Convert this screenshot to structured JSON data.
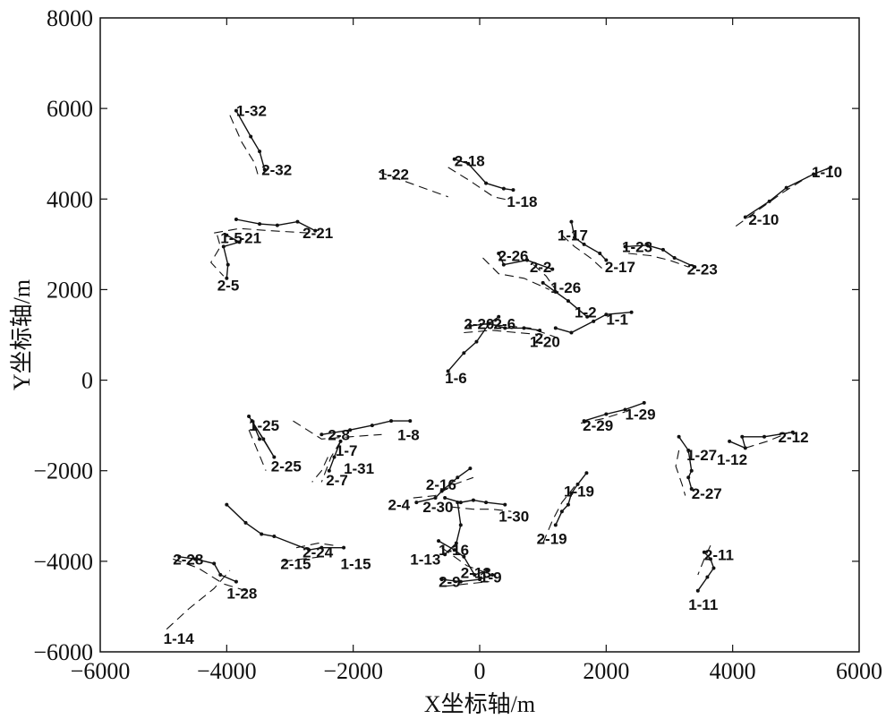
{
  "chart_data": {
    "type": "line",
    "xlabel": "X坐标轴/m",
    "ylabel": "Y坐标轴/m",
    "xlim": [
      -6000,
      6000
    ],
    "ylim": [
      -6000,
      8000
    ],
    "xticks": [
      "−6000",
      "−4000",
      "−2000",
      "0",
      "2000",
      "4000",
      "6000"
    ],
    "yticks": [
      "−6000",
      "−4000",
      "−2000",
      "0",
      "2000",
      "4000",
      "6000",
      "8000"
    ],
    "grid": false,
    "series": [
      {
        "name": "1-32",
        "style": "solid",
        "x": [
          -3850,
          -3620,
          -3480,
          -3400
        ],
        "y": [
          5950,
          5380,
          5050,
          4650
        ]
      },
      {
        "name": "2-32",
        "style": "dashed",
        "x": [
          -3950,
          -3760,
          -3560,
          -3510
        ],
        "y": [
          5850,
          5250,
          4800,
          4550
        ]
      },
      {
        "name": "1-22",
        "style": "dashed",
        "x": [
          -1600,
          -500
        ],
        "y": [
          4600,
          4050
        ]
      },
      {
        "name": "1-18",
        "style": "solid",
        "x": [
          -400,
          -180,
          100,
          380,
          530
        ],
        "y": [
          4880,
          4780,
          4350,
          4230,
          4200
        ]
      },
      {
        "name": "2-18",
        "style": "dashed",
        "x": [
          -500,
          -150,
          220,
          450
        ],
        "y": [
          4700,
          4400,
          4050,
          3980
        ]
      },
      {
        "name": "1-10",
        "style": "solid",
        "x": [
          4200,
          4580,
          4850,
          5280,
          5550
        ],
        "y": [
          3600,
          3950,
          4250,
          4550,
          4700
        ]
      },
      {
        "name": "2-10",
        "style": "dashed",
        "x": [
          4050,
          4400,
          4800,
          5200
        ],
        "y": [
          3400,
          3750,
          4150,
          4500
        ]
      },
      {
        "name": "2-21",
        "style": "solid",
        "x": [
          -3850,
          -3480,
          -3200,
          -2880,
          -2600
        ],
        "y": [
          3550,
          3450,
          3420,
          3500,
          3300
        ]
      },
      {
        "name": "1-21",
        "style": "dashed",
        "x": [
          -4200,
          -3800,
          -3300,
          -2700
        ],
        "y": [
          3250,
          3350,
          3300,
          3250
        ]
      },
      {
        "name": "1-5",
        "style": "solid",
        "x": [
          -4000,
          -3800,
          -4050,
          -3980,
          -4000
        ],
        "y": [
          3200,
          3050,
          2950,
          2550,
          2250
        ]
      },
      {
        "name": "2-5",
        "style": "dashed",
        "x": [
          -4150,
          -4100,
          -4250,
          -4050
        ],
        "y": [
          3200,
          2950,
          2600,
          2300
        ]
      },
      {
        "name": "1-17",
        "style": "solid",
        "x": [
          1450,
          1500,
          1650,
          1900,
          2000
        ],
        "y": [
          3500,
          3150,
          3000,
          2800,
          2650
        ]
      },
      {
        "name": "2-17",
        "style": "dashed",
        "x": [
          1300,
          1500,
          1750,
          1950
        ],
        "y": [
          3200,
          2950,
          2700,
          2450
        ]
      },
      {
        "name": "1-23",
        "style": "solid",
        "x": [
          2300,
          2650,
          2900,
          3080,
          3400
        ],
        "y": [
          2950,
          2980,
          2880,
          2700,
          2500
        ]
      },
      {
        "name": "2-23",
        "style": "dashed",
        "x": [
          2350,
          2700,
          3000,
          3300
        ],
        "y": [
          2800,
          2750,
          2650,
          2500
        ]
      },
      {
        "name": "2-26",
        "style": "solid",
        "x": [
          300,
          380,
          750,
          1150
        ],
        "y": [
          2800,
          2550,
          2650,
          2450
        ]
      },
      {
        "name": "1-26",
        "style": "dashed",
        "x": [
          50,
          300,
          700,
          1100
        ],
        "y": [
          2700,
          2350,
          2250,
          2000
        ]
      },
      {
        "name": "2-2",
        "style": "dashed",
        "x": [
          850,
          1050,
          1200
        ],
        "y": [
          2550,
          2300,
          2000
        ]
      },
      {
        "name": "1-2",
        "style": "solid",
        "x": [
          1000,
          1200,
          1400,
          1700
        ],
        "y": [
          2150,
          1950,
          1750,
          1400
        ]
      },
      {
        "name": "1-1",
        "style": "solid",
        "x": [
          1200,
          1450,
          1800,
          2000,
          2400
        ],
        "y": [
          1150,
          1050,
          1300,
          1450,
          1500
        ]
      },
      {
        "name": "2-20",
        "style": "solid",
        "x": [
          -150,
          150,
          400,
          700,
          950
        ],
        "y": [
          1200,
          1250,
          1150,
          1150,
          1100
        ]
      },
      {
        "name": "1-20",
        "style": "dashed",
        "x": [
          -250,
          200,
          600,
          1000
        ],
        "y": [
          1050,
          1100,
          1050,
          1000
        ]
      },
      {
        "name": "2-6",
        "style": "dashed",
        "x": [
          0,
          400,
          800,
          1300
        ],
        "y": [
          1250,
          1200,
          1150,
          900
        ]
      },
      {
        "name": "1-6",
        "style": "solid",
        "x": [
          -500,
          -250,
          -50,
          150,
          300
        ],
        "y": [
          200,
          600,
          850,
          1250,
          1400
        ]
      },
      {
        "name": "1-29",
        "style": "solid",
        "x": [
          1650,
          2000,
          2300,
          2600
        ],
        "y": [
          -900,
          -750,
          -650,
          -500
        ]
      },
      {
        "name": "2-29",
        "style": "dashed",
        "x": [
          1600,
          1950,
          2300
        ],
        "y": [
          -950,
          -850,
          -700
        ]
      },
      {
        "name": "1-8",
        "style": "solid",
        "x": [
          -2500,
          -2050,
          -1700,
          -1400,
          -1100
        ],
        "y": [
          -1200,
          -1100,
          -1000,
          -900,
          -900
        ]
      },
      {
        "name": "2-8",
        "style": "dashed",
        "x": [
          -2950,
          -2500,
          -2050,
          -1550
        ],
        "y": [
          -900,
          -1300,
          -1250,
          -1200
        ]
      },
      {
        "name": "1-25",
        "style": "solid",
        "x": [
          -3650,
          -3420,
          -3250,
          -3600,
          -3480
        ],
        "y": [
          -800,
          -1300,
          -1700,
          -900,
          -1300
        ]
      },
      {
        "name": "2-25",
        "style": "dashed",
        "x": [
          -3650,
          -3500,
          -3380
        ],
        "y": [
          -1100,
          -1600,
          -2000
        ]
      },
      {
        "name": "1-7",
        "style": "dashed",
        "x": [
          -2200,
          -2350,
          -2500
        ],
        "y": [
          -1350,
          -1700,
          -2250
        ]
      },
      {
        "name": "1-31",
        "style": "solid",
        "x": [
          -2200,
          -2300,
          -2380
        ],
        "y": [
          -1350,
          -1700,
          -2000
        ]
      },
      {
        "name": "2-7",
        "style": "dashed",
        "x": [
          -2400,
          -2500,
          -2650
        ],
        "y": [
          -1700,
          -2000,
          -2250
        ]
      },
      {
        "name": "1-12",
        "style": "solid",
        "x": [
          3950,
          4200,
          4150,
          4500,
          4950
        ],
        "y": [
          -1350,
          -1500,
          -1250,
          -1250,
          -1150
        ]
      },
      {
        "name": "2-12",
        "style": "dashed",
        "x": [
          4200,
          4550,
          4900
        ],
        "y": [
          -1500,
          -1350,
          -1150
        ]
      },
      {
        "name": "1-27",
        "style": "solid",
        "x": [
          3150,
          3300,
          3350,
          3300,
          3350
        ],
        "y": [
          -1250,
          -1550,
          -2000,
          -2150,
          -2400
        ]
      },
      {
        "name": "2-27",
        "style": "dashed",
        "x": [
          3150,
          3100,
          3200,
          3250
        ],
        "y": [
          -1550,
          -1900,
          -2300,
          -2550
        ]
      },
      {
        "name": "2-16",
        "style": "solid",
        "x": [
          -1000,
          -700,
          -600,
          -350,
          -150
        ],
        "y": [
          -2700,
          -2600,
          -2450,
          -2150,
          -1950
        ]
      },
      {
        "name": "2-4",
        "style": "dashed",
        "x": [
          -1050,
          -700,
          -400,
          -100
        ],
        "y": [
          -2600,
          -2550,
          -2300,
          -2150
        ]
      },
      {
        "name": "1-30",
        "style": "solid",
        "x": [
          -550,
          -300,
          -100,
          100,
          400
        ],
        "y": [
          -2600,
          -2700,
          -2650,
          -2700,
          -2750
        ]
      },
      {
        "name": "2-30",
        "style": "dashed",
        "x": [
          -450,
          -100,
          200,
          500
        ],
        "y": [
          -2800,
          -2850,
          -2850,
          -2900
        ]
      },
      {
        "name": "1-16",
        "style": "solid",
        "x": [
          -350,
          -300,
          -370,
          -550
        ],
        "y": [
          -2700,
          -3200,
          -3600,
          -3850
        ]
      },
      {
        "name": "1-13",
        "style": "solid",
        "x": [
          -650,
          -400,
          -250,
          -80,
          120
        ],
        "y": [
          -3550,
          -3750,
          -3900,
          -4300,
          -4200
        ]
      },
      {
        "name": "2-13",
        "style": "dashed",
        "x": [
          -600,
          -200,
          200
        ],
        "y": [
          -3700,
          -4100,
          -4300
        ]
      },
      {
        "name": "2-9",
        "style": "solid",
        "x": [
          -600,
          -300,
          0,
          200
        ],
        "y": [
          -4400,
          -4450,
          -4400,
          -4300
        ]
      },
      {
        "name": "1-9",
        "style": "dashed",
        "x": [
          -550,
          -200,
          150
        ],
        "y": [
          -4550,
          -4500,
          -4450
        ]
      },
      {
        "name": "1-19",
        "style": "solid",
        "x": [
          1200,
          1300,
          1400,
          1450,
          1550,
          1690
        ],
        "y": [
          -3200,
          -2900,
          -2750,
          -2500,
          -2300,
          -2050
        ]
      },
      {
        "name": "2-19",
        "style": "dashed",
        "x": [
          1000,
          1150,
          1300,
          1500
        ],
        "y": [
          -3600,
          -3100,
          -2700,
          -2350
        ]
      },
      {
        "name": "1-15",
        "style": "solid",
        "x": [
          -4000,
          -3700,
          -3450,
          -3250,
          -2700,
          -2500,
          -2150
        ],
        "y": [
          -2750,
          -3150,
          -3400,
          -3450,
          -3750,
          -3700,
          -3700
        ]
      },
      {
        "name": "2-15",
        "style": "dashed",
        "x": [
          -3100,
          -2800,
          -2500
        ],
        "y": [
          -4000,
          -3950,
          -3900
        ]
      },
      {
        "name": "2-24",
        "style": "dashed",
        "x": [
          -2900,
          -2550,
          -2300
        ],
        "y": [
          -3700,
          -3600,
          -3650
        ]
      },
      {
        "name": "1-28",
        "style": "solid",
        "x": [
          -4750,
          -4500,
          -4200,
          -4100,
          -3850
        ],
        "y": [
          -3900,
          -3950,
          -4050,
          -4300,
          -4450
        ]
      },
      {
        "name": "2-28",
        "style": "dashed",
        "x": [
          -4850,
          -4450,
          -4050,
          -3700
        ],
        "y": [
          -3950,
          -4150,
          -4500,
          -4650
        ]
      },
      {
        "name": "1-14",
        "style": "dashed",
        "x": [
          -4950,
          -4600,
          -4200,
          -3950
        ],
        "y": [
          -5500,
          -5050,
          -4600,
          -4200
        ]
      },
      {
        "name": "1-11",
        "style": "solid",
        "x": [
          3550,
          3650,
          3700,
          3600,
          3450
        ],
        "y": [
          -3800,
          -3950,
          -4150,
          -4350,
          -4650
        ]
      },
      {
        "name": "2-11",
        "style": "dashed",
        "x": [
          3650,
          3550,
          3450
        ],
        "y": [
          -3650,
          -3950,
          -4300
        ]
      }
    ],
    "labels": [
      {
        "text": "1-32",
        "x": -3850,
        "y": 5950
      },
      {
        "text": "2-32",
        "x": -3450,
        "y": 4650
      },
      {
        "text": "2-18",
        "x": -400,
        "y": 4850
      },
      {
        "text": "1-22",
        "x": -1600,
        "y": 4550
      },
      {
        "text": "1-18",
        "x": 430,
        "y": 3950
      },
      {
        "text": "1-10",
        "x": 5250,
        "y": 4600
      },
      {
        "text": "2-10",
        "x": 4250,
        "y": 3550
      },
      {
        "text": "1-5",
        "x": -4100,
        "y": 3150
      },
      {
        "text": "-21",
        "x": -3800,
        "y": 3150
      },
      {
        "text": "2-21",
        "x": -2800,
        "y": 3250
      },
      {
        "text": "2-5",
        "x": -4150,
        "y": 2100
      },
      {
        "text": "1-17",
        "x": 1230,
        "y": 3200
      },
      {
        "text": "1-23",
        "x": 2250,
        "y": 2950
      },
      {
        "text": "2-17",
        "x": 1980,
        "y": 2500
      },
      {
        "text": "2-23",
        "x": 3280,
        "y": 2450
      },
      {
        "text": "2-26",
        "x": 290,
        "y": 2750
      },
      {
        "text": "2-2",
        "x": 790,
        "y": 2500
      },
      {
        "text": "1-26",
        "x": 1120,
        "y": 2050
      },
      {
        "text": "1-2",
        "x": 1500,
        "y": 1500
      },
      {
        "text": "1-1",
        "x": 2000,
        "y": 1350
      },
      {
        "text": "2-20",
        "x": -250,
        "y": 1250
      },
      {
        "text": "2-6",
        "x": 220,
        "y": 1250
      },
      {
        "text": "1-20",
        "x": 790,
        "y": 850
      },
      {
        "text": "2",
        "x": 870,
        "y": 930
      },
      {
        "text": "1-6",
        "x": -550,
        "y": 50
      },
      {
        "text": "1-29",
        "x": 2300,
        "y": -750
      },
      {
        "text": "2-29",
        "x": 1630,
        "y": -1000
      },
      {
        "text": "1-25",
        "x": -3650,
        "y": -1000
      },
      {
        "text": "2-8",
        "x": -2400,
        "y": -1200
      },
      {
        "text": "1-8",
        "x": -1300,
        "y": -1200
      },
      {
        "text": "1-7",
        "x": -2280,
        "y": -1550
      },
      {
        "text": "2-25",
        "x": -3300,
        "y": -1900
      },
      {
        "text": "1-31",
        "x": -2150,
        "y": -1950
      },
      {
        "text": "2-7",
        "x": -2430,
        "y": -2200
      },
      {
        "text": "1-27",
        "x": 3270,
        "y": -1650
      },
      {
        "text": "2-12",
        "x": 4720,
        "y": -1250
      },
      {
        "text": "1-12",
        "x": 3750,
        "y": -1750
      },
      {
        "text": "2-27",
        "x": 3350,
        "y": -2500
      },
      {
        "text": "2-16",
        "x": -850,
        "y": -2300
      },
      {
        "text": "1-19",
        "x": 1330,
        "y": -2450
      },
      {
        "text": "2-4",
        "x": -1450,
        "y": -2750
      },
      {
        "text": "2-30",
        "x": -900,
        "y": -2800
      },
      {
        "text": "1-30",
        "x": 300,
        "y": -3000
      },
      {
        "text": "2-19",
        "x": 900,
        "y": -3500
      },
      {
        "text": "1-16",
        "x": -650,
        "y": -3750
      },
      {
        "text": "1-13",
        "x": -1100,
        "y": -3950
      },
      {
        "text": "2-13",
        "x": -300,
        "y": -4250
      },
      {
        "text": "1-9",
        "x": 0,
        "y": -4350
      },
      {
        "text": "2-9",
        "x": -650,
        "y": -4450
      },
      {
        "text": "2-24",
        "x": -2800,
        "y": -3800
      },
      {
        "text": "2-15",
        "x": -3150,
        "y": -4050
      },
      {
        "text": "1-15",
        "x": -2200,
        "y": -4050
      },
      {
        "text": "2-28",
        "x": -4850,
        "y": -3950
      },
      {
        "text": "1-28",
        "x": -4000,
        "y": -4700
      },
      {
        "text": "1-14",
        "x": -5000,
        "y": -5700
      },
      {
        "text": "2-11",
        "x": 3550,
        "y": -3850
      },
      {
        "text": "1-11",
        "x": 3300,
        "y": -4950
      }
    ]
  }
}
